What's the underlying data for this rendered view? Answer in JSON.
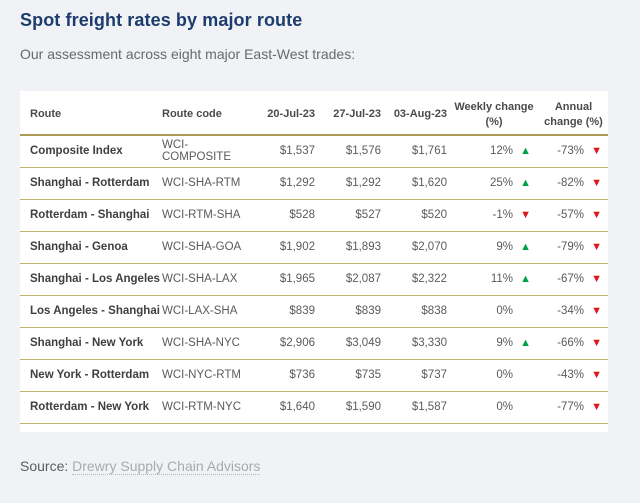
{
  "page": {
    "title": "Spot freight rates by major route",
    "subtitle": "Our assessment across eight major East-West trades:",
    "source_label": "Source:",
    "source_link": "Drewry Supply Chain Advisors"
  },
  "colors": {
    "title_navy": "#1d3c6e",
    "gold_header_rule": "#ac9a55",
    "gold_row_rule": "#c3b172",
    "up_green": "#00a24b",
    "down_red": "#e0151b",
    "page_background": "#f1f2f6",
    "table_background": "#ffffff"
  },
  "icons": {
    "up_arrow": "▲",
    "down_arrow": "▼"
  },
  "table": {
    "columns": [
      "Route",
      "Route code",
      "20-Jul-23",
      "27-Jul-23",
      "03-Aug-23",
      "Weekly change (%)",
      "Annual change (%)"
    ],
    "rows": [
      {
        "route": "Composite Index",
        "code": "WCI-COMPOSITE",
        "d1": "$1,537",
        "d2": "$1,576",
        "d3": "$1,761",
        "weekly": "12%",
        "weekly_dir": "up",
        "annual": "-73%",
        "annual_dir": "down"
      },
      {
        "route": "Shanghai - Rotterdam",
        "code": "WCI-SHA-RTM",
        "d1": "$1,292",
        "d2": "$1,292",
        "d3": "$1,620",
        "weekly": "25%",
        "weekly_dir": "up",
        "annual": "-82%",
        "annual_dir": "down"
      },
      {
        "route": "Rotterdam - Shanghai",
        "code": "WCI-RTM-SHA",
        "d1": "$528",
        "d2": "$527",
        "d3": "$520",
        "weekly": "-1%",
        "weekly_dir": "down",
        "annual": "-57%",
        "annual_dir": "down"
      },
      {
        "route": "Shanghai - Genoa",
        "code": "WCI-SHA-GOA",
        "d1": "$1,902",
        "d2": "$1,893",
        "d3": "$2,070",
        "weekly": "9%",
        "weekly_dir": "up",
        "annual": "-79%",
        "annual_dir": "down"
      },
      {
        "route": "Shanghai - Los Angeles",
        "code": "WCI-SHA-LAX",
        "d1": "$1,965",
        "d2": "$2,087",
        "d3": "$2,322",
        "weekly": "11%",
        "weekly_dir": "up",
        "annual": "-67%",
        "annual_dir": "down"
      },
      {
        "route": "Los Angeles - Shanghai",
        "code": "WCI-LAX-SHA",
        "d1": "$839",
        "d2": "$839",
        "d3": "$838",
        "weekly": "0%",
        "weekly_dir": "none",
        "annual": "-34%",
        "annual_dir": "down"
      },
      {
        "route": "Shanghai - New York",
        "code": "WCI-SHA-NYC",
        "d1": "$2,906",
        "d2": "$3,049",
        "d3": "$3,330",
        "weekly": "9%",
        "weekly_dir": "up",
        "annual": "-66%",
        "annual_dir": "down"
      },
      {
        "route": "New York - Rotterdam",
        "code": "WCI-NYC-RTM",
        "d1": "$736",
        "d2": "$735",
        "d3": "$737",
        "weekly": "0%",
        "weekly_dir": "none",
        "annual": "-43%",
        "annual_dir": "down"
      },
      {
        "route": "Rotterdam - New York",
        "code": "WCI-RTM-NYC",
        "d1": "$1,640",
        "d2": "$1,590",
        "d3": "$1,587",
        "weekly": "0%",
        "weekly_dir": "none",
        "annual": "-77%",
        "annual_dir": "down"
      }
    ]
  },
  "chart_data": {
    "type": "table",
    "title": "Spot freight rates by major route",
    "subtitle": "Our assessment across eight major East-West trades:",
    "columns": [
      "Route",
      "Route code",
      "20-Jul-23",
      "27-Jul-23",
      "03-Aug-23",
      "Weekly change (%)",
      "Annual change (%)"
    ],
    "rows": [
      [
        "Composite Index",
        "WCI-COMPOSITE",
        1537,
        1576,
        1761,
        "12% up",
        "-73% down"
      ],
      [
        "Shanghai - Rotterdam",
        "WCI-SHA-RTM",
        1292,
        1292,
        1620,
        "25% up",
        "-82% down"
      ],
      [
        "Rotterdam - Shanghai",
        "WCI-RTM-SHA",
        528,
        527,
        520,
        "-1% down",
        "-57% down"
      ],
      [
        "Shanghai - Genoa",
        "WCI-SHA-GOA",
        1902,
        1893,
        2070,
        "9% up",
        "-79% down"
      ],
      [
        "Shanghai - Los Angeles",
        "WCI-SHA-LAX",
        1965,
        2087,
        2322,
        "11% up",
        "-67% down"
      ],
      [
        "Los Angeles - Shanghai",
        "WCI-LAX-SHA",
        839,
        839,
        838,
        "0%",
        "-34% down"
      ],
      [
        "Shanghai - New York",
        "WCI-SHA-NYC",
        2906,
        3049,
        3330,
        "9% up",
        "-66% down"
      ],
      [
        "New York - Rotterdam",
        "WCI-NYC-RTM",
        736,
        735,
        737,
        "0%",
        "-43% down"
      ],
      [
        "Rotterdam - New York",
        "WCI-RTM-NYC",
        1640,
        1590,
        1587,
        "0%",
        "-77% down"
      ]
    ],
    "source": "Drewry Supply Chain Advisors"
  }
}
